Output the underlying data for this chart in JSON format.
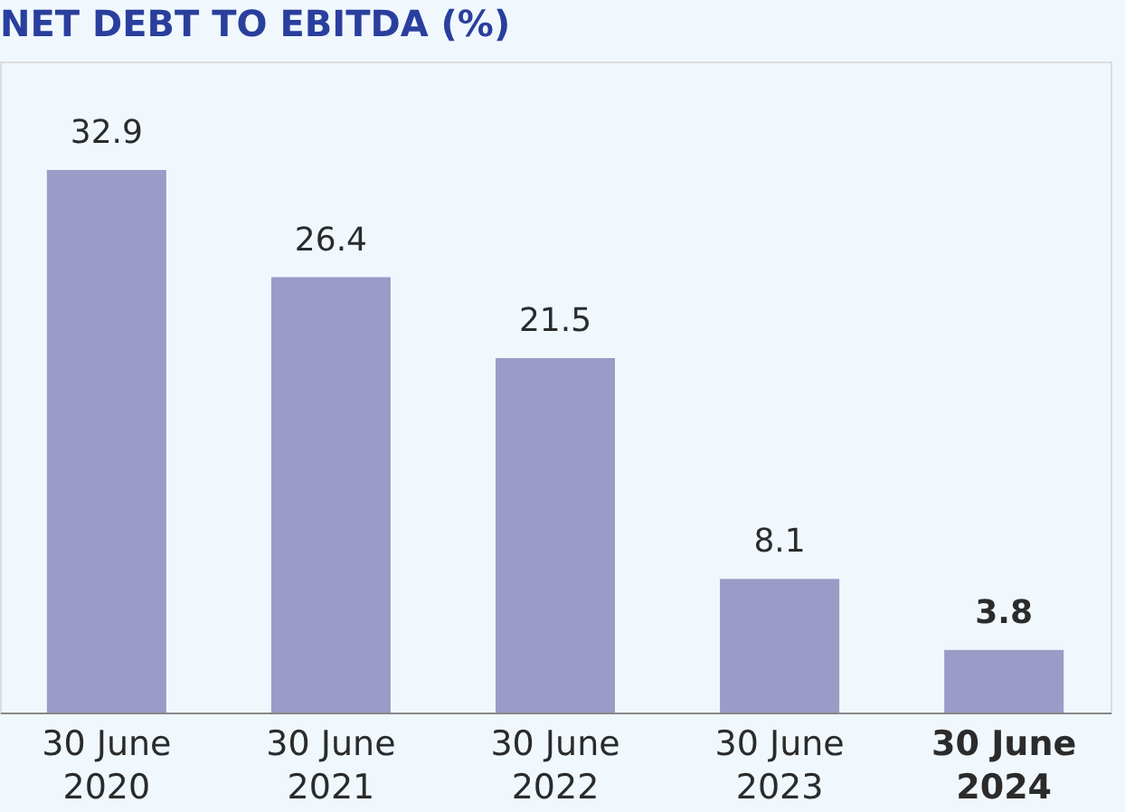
{
  "chart_data": {
    "type": "bar",
    "title": "NET DEBT TO EBITDA (%)",
    "categories": [
      "30 June 2020",
      "30 June 2021",
      "30 June 2022",
      "30 June 2023",
      "30 June 2024"
    ],
    "values": [
      32.9,
      26.4,
      21.5,
      8.1,
      3.8
    ],
    "color": "#9b9bc7",
    "data_labels": true
  }
}
